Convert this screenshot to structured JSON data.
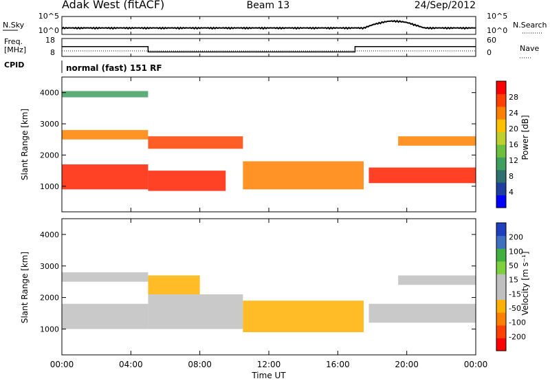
{
  "header": {
    "station": "Adak West (fitACF)",
    "beam": "Beam 13",
    "date": "24/Sep/2012"
  },
  "top_panels": {
    "nsky_label": "N.Sky",
    "nsearch_label": "N.Search",
    "noise_left_ticks": [
      "10^5",
      "10^0"
    ],
    "noise_right_ticks": [
      "10^5",
      "10^0"
    ],
    "freq_label_line1": "Freq.",
    "freq_label_line2": "[MHz]",
    "freq_ticks": [
      "18",
      "8"
    ],
    "nave_label": "Nave",
    "nave_ticks": [
      "60",
      "0"
    ],
    "cpid_label": "CPID",
    "cpid_text": "normal (fast) 151 RF",
    "freq_series": {
      "x_hours": [
        0,
        5.0,
        5.0,
        17.0,
        17.0,
        24
      ],
      "mhz": [
        13.5,
        13.5,
        10.5,
        10.5,
        13.5,
        13.5
      ]
    }
  },
  "chart_data": [
    {
      "type": "heatmap",
      "title": "Power",
      "ylabel": "Slant Range [km]",
      "yticks": [
        "4000",
        "3000",
        "2000",
        "1000"
      ],
      "ytick_values": [
        4000,
        3000,
        2000,
        1000
      ],
      "ylim": [
        180,
        4500
      ],
      "xlim": [
        0,
        24
      ],
      "colorbar_label": "Power [dB]",
      "colorbar_ticks": [
        "28",
        "24",
        "20",
        "16",
        "12",
        "8",
        "4"
      ],
      "colorbar_colors": [
        "#0000ff",
        "#1f3f9f",
        "#2f6f6f",
        "#3f9f5f",
        "#6fbf3f",
        "#bfcf2f",
        "#ffc000",
        "#ff8000",
        "#ff4000",
        "#ff0000"
      ],
      "regions": [
        {
          "x0": 0,
          "x1": 5,
          "r0": 900,
          "r1": 1700,
          "color": "#ff2000"
        },
        {
          "x0": 0,
          "x1": 5,
          "r0": 2500,
          "r1": 2800,
          "color": "#ff8000"
        },
        {
          "x0": 0,
          "x1": 5,
          "r0": 3850,
          "r1": 4050,
          "color": "#3f9f5f"
        },
        {
          "x0": 5,
          "x1": 9.5,
          "r0": 850,
          "r1": 1500,
          "color": "#ff2000"
        },
        {
          "x0": 5,
          "x1": 10.5,
          "r0": 2200,
          "r1": 2600,
          "color": "#ff4000"
        },
        {
          "x0": 10.5,
          "x1": 17.5,
          "r0": 900,
          "r1": 1800,
          "color": "#ff8000"
        },
        {
          "x0": 17.8,
          "x1": 24,
          "r0": 1100,
          "r1": 1600,
          "color": "#ff2000"
        },
        {
          "x0": 19.5,
          "x1": 24,
          "r0": 2300,
          "r1": 2600,
          "color": "#ff8000"
        }
      ]
    },
    {
      "type": "heatmap",
      "title": "Velocity",
      "ylabel": "Slant Range [km]",
      "yticks": [
        "4000",
        "3000",
        "2000",
        "1000"
      ],
      "ytick_values": [
        4000,
        3000,
        2000,
        1000
      ],
      "ylim": [
        180,
        4500
      ],
      "xlim": [
        0,
        24
      ],
      "xticks": [
        "00:00",
        "04:00",
        "08:00",
        "12:00",
        "16:00",
        "20:00",
        "00:00"
      ],
      "xtick_values": [
        0,
        4,
        8,
        12,
        16,
        20,
        24
      ],
      "xlabel": "Time UT",
      "colorbar_label": "Velocity [m s⁻¹]",
      "colorbar_ticks": [
        "200",
        "100",
        "50",
        "15",
        "-15",
        "-50",
        "-100",
        "-200"
      ],
      "colorbar_colors": [
        "#ff0000",
        "#ff4000",
        "#ff8000",
        "#ffb000",
        "#c0c0c0",
        "#c0c0c0",
        "#7fd040",
        "#40b040",
        "#3f6fbf",
        "#1f3fbf"
      ],
      "regions": [
        {
          "x0": 0,
          "x1": 5,
          "r0": 1000,
          "r1": 1800,
          "color": "#c0c0c0"
        },
        {
          "x0": 0,
          "x1": 5,
          "r0": 2500,
          "r1": 2800,
          "color": "#c0c0c0"
        },
        {
          "x0": 5,
          "x1": 10.5,
          "r0": 1000,
          "r1": 2100,
          "color": "#c0c0c0"
        },
        {
          "x0": 5,
          "x1": 8,
          "r0": 2100,
          "r1": 2700,
          "color": "#ffb000"
        },
        {
          "x0": 10.5,
          "x1": 17.5,
          "r0": 900,
          "r1": 1900,
          "color": "#ffb000"
        },
        {
          "x0": 17.8,
          "x1": 24,
          "r0": 1200,
          "r1": 1800,
          "color": "#c0c0c0"
        },
        {
          "x0": 19.5,
          "x1": 24,
          "r0": 2400,
          "r1": 2700,
          "color": "#c0c0c0"
        }
      ]
    }
  ]
}
